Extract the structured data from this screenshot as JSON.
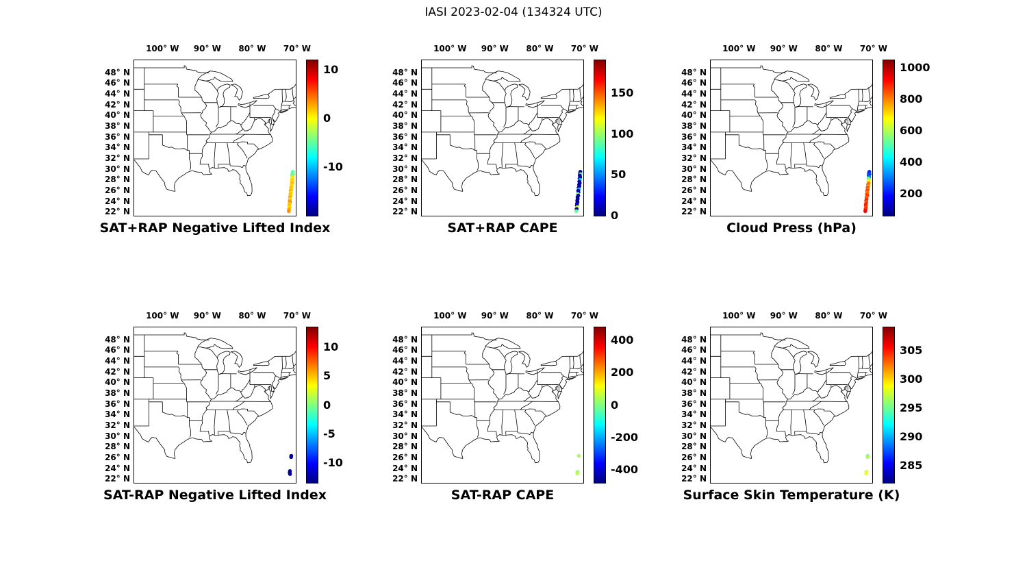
{
  "figure_title": "IASI 2023-02-04 (134324 UTC)",
  "axes": {
    "lon_tick_labels": [
      "100° W",
      "90° W",
      "80° W",
      "70° W"
    ],
    "lon_tick_values": [
      -100,
      -90,
      -80,
      -70
    ],
    "lat_tick_labels": [
      "48° N",
      "46° N",
      "44° N",
      "42° N",
      "40° N",
      "38° N",
      "36° N",
      "34° N",
      "32° N",
      "30° N",
      "28° N",
      "26° N",
      "24° N",
      "22° N"
    ],
    "lat_tick_values": [
      48,
      46,
      44,
      42,
      40,
      38,
      36,
      34,
      32,
      30,
      28,
      26,
      24,
      22
    ]
  },
  "map_extent": {
    "lon_min": -106.3,
    "lon_max": -70.3,
    "lat_min": 21.4,
    "lat_max": 50.4
  },
  "chart_data": {
    "type": "scatter",
    "colormap": "jet",
    "grid": false,
    "swath_lonlat": [
      [
        -70.95,
        29.6
      ],
      [
        -71.05,
        29.3
      ],
      [
        -70.9,
        29.15
      ],
      [
        -71.1,
        28.9
      ],
      [
        -71.0,
        28.6
      ],
      [
        -71.15,
        28.32
      ],
      [
        -71.05,
        28.05
      ],
      [
        -71.2,
        27.78
      ],
      [
        -71.1,
        27.5
      ],
      [
        -71.25,
        27.2
      ],
      [
        -71.18,
        26.92
      ],
      [
        -71.35,
        26.62
      ],
      [
        -71.28,
        26.33
      ],
      [
        -71.45,
        26.05
      ],
      [
        -71.38,
        25.75
      ],
      [
        -71.5,
        25.45
      ],
      [
        -71.45,
        25.15
      ],
      [
        -71.6,
        24.85
      ],
      [
        -71.55,
        24.55
      ],
      [
        -71.65,
        24.25
      ],
      [
        -71.6,
        23.95
      ],
      [
        -71.7,
        23.65
      ],
      [
        -71.75,
        23.3
      ],
      [
        -71.68,
        23.0
      ],
      [
        -71.8,
        22.65
      ],
      [
        -71.85,
        22.25
      ]
    ],
    "panels": [
      {
        "title": "SAT+RAP Negative Lifted Index",
        "vmin": -20,
        "vmax": 12,
        "colorbar_ticks": [
          -10,
          0,
          10
        ],
        "values": [
          -5,
          -6,
          -4,
          -5.5,
          1,
          0.5,
          1.5,
          1,
          2,
          1.5,
          1,
          2,
          1.5,
          2.5,
          1,
          2,
          1.5,
          3,
          1,
          2,
          4,
          1.5,
          2,
          1,
          2.5,
          3.5
        ]
      },
      {
        "title": "SAT+RAP CAPE",
        "vmin": 0,
        "vmax": 190,
        "colorbar_ticks": [
          0,
          50,
          100,
          150
        ],
        "values": [
          5,
          8,
          90,
          6,
          4,
          10,
          70,
          5,
          8,
          12,
          5,
          9,
          60,
          6,
          10,
          95,
          7,
          5,
          12,
          8,
          6,
          10,
          5,
          110,
          8,
          90
        ]
      },
      {
        "title": "Cloud Press (hPa)",
        "vmin": 60,
        "vmax": 1050,
        "colorbar_ticks": [
          200,
          400,
          600,
          800,
          1000
        ],
        "values": [
          230,
          210,
          260,
          240,
          300,
          520,
          600,
          680,
          800,
          830,
          780,
          850,
          820,
          870,
          800,
          840,
          880,
          820,
          860,
          900,
          840,
          880,
          910,
          850,
          890,
          930
        ]
      },
      {
        "title": "SAT-RAP Negative Lifted Index",
        "vmin": -13.5,
        "vmax": 13.5,
        "colorbar_ticks": [
          -10,
          -5,
          0,
          5,
          10
        ],
        "points": [
          [
            -71.3,
            26.45,
            -12
          ],
          [
            -71.33,
            26.2,
            -12.5
          ],
          [
            -71.6,
            23.6,
            -12
          ],
          [
            -71.65,
            23.3,
            -13
          ],
          [
            -71.58,
            23.05,
            -12.5
          ]
        ]
      },
      {
        "title": "SAT-RAP CAPE",
        "vmin": -480,
        "vmax": 480,
        "colorbar_ticks": [
          -400,
          -200,
          0,
          200,
          400
        ],
        "points": [
          [
            -71.3,
            26.45,
            40
          ],
          [
            -71.6,
            23.45,
            30
          ],
          [
            -71.65,
            23.15,
            55
          ]
        ]
      },
      {
        "title": "Surface Skin Temperature (K)",
        "vmin": 282,
        "vmax": 309,
        "colorbar_ticks": [
          285,
          290,
          295,
          300,
          305
        ],
        "points": [
          [
            -71.3,
            26.45,
            296
          ],
          [
            -71.33,
            26.2,
            296.5
          ],
          [
            -71.6,
            23.45,
            297.5
          ],
          [
            -71.65,
            23.15,
            298.5
          ]
        ]
      }
    ]
  }
}
